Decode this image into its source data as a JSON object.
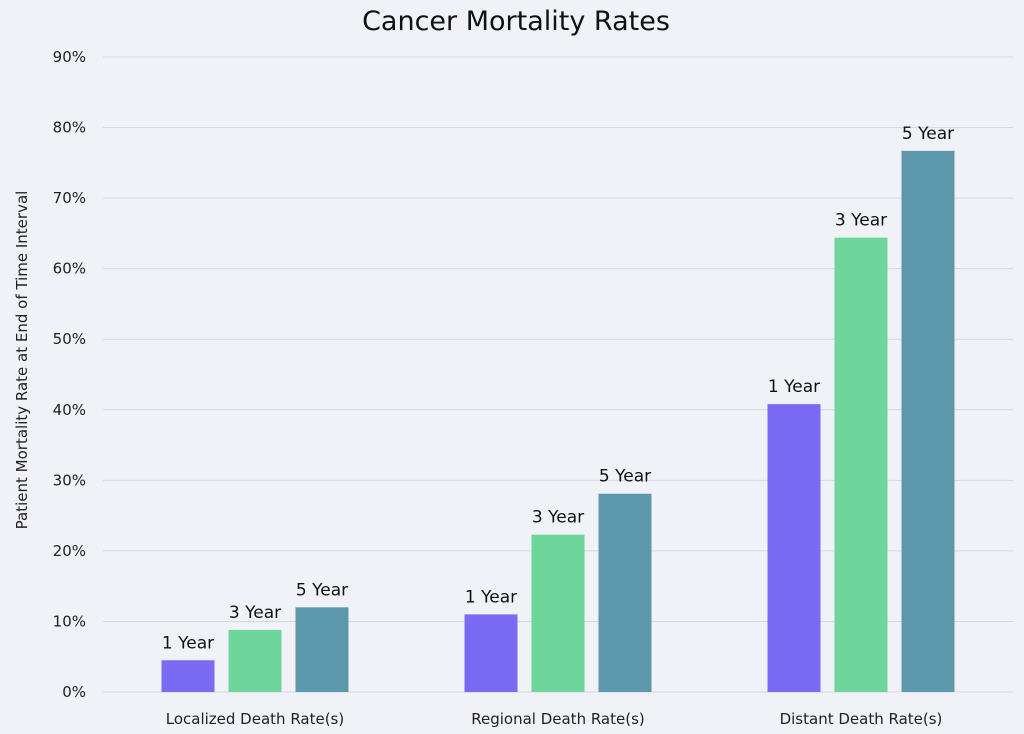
{
  "chart_data": {
    "type": "bar",
    "title": "Cancer Mortality Rates",
    "xlabel": "",
    "ylabel": "Patient Mortality Rate at End of Time Interval",
    "ylim": [
      0,
      90
    ],
    "y_unit": "%",
    "y_ticks": [
      "0%",
      "10%",
      "20%",
      "30%",
      "40%",
      "50%",
      "60%",
      "70%",
      "80%",
      "90%"
    ],
    "grid": true,
    "legend": "none",
    "categories": [
      "Localized Death Rate(s)",
      "Regional Death Rate(s)",
      "Distant Death Rate(s)"
    ],
    "series": [
      {
        "label": "1 Year",
        "color": "#7b6bf4",
        "values": [
          4.5,
          11,
          40.8
        ]
      },
      {
        "label": "3 Year",
        "color": "#6ed69a",
        "values": [
          8.8,
          22.3,
          64.4
        ]
      },
      {
        "label": "5 Year",
        "color": "#5c97ab",
        "values": [
          12,
          28.1,
          76.7
        ]
      }
    ]
  }
}
